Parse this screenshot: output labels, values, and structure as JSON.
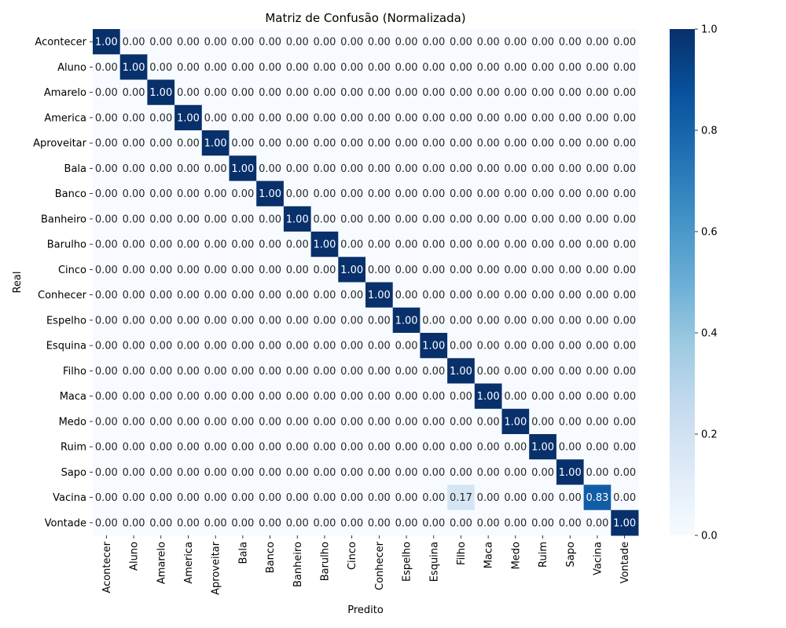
{
  "chart_data": {
    "type": "heatmap",
    "title": "Matriz de Confusão (Normalizada)",
    "xlabel": "Predito",
    "ylabel": "Real",
    "categories": [
      "Acontecer",
      "Aluno",
      "Amarelo",
      "America",
      "Aproveitar",
      "Bala",
      "Banco",
      "Banheiro",
      "Barulho",
      "Cinco",
      "Conhecer",
      "Espelho",
      "Esquina",
      "Filho",
      "Maca",
      "Medo",
      "Ruim",
      "Sapo",
      "Vacina",
      "Vontade"
    ],
    "values": [
      [
        1,
        0,
        0,
        0,
        0,
        0,
        0,
        0,
        0,
        0,
        0,
        0,
        0,
        0,
        0,
        0,
        0,
        0,
        0,
        0
      ],
      [
        0,
        1,
        0,
        0,
        0,
        0,
        0,
        0,
        0,
        0,
        0,
        0,
        0,
        0,
        0,
        0,
        0,
        0,
        0,
        0
      ],
      [
        0,
        0,
        1,
        0,
        0,
        0,
        0,
        0,
        0,
        0,
        0,
        0,
        0,
        0,
        0,
        0,
        0,
        0,
        0,
        0
      ],
      [
        0,
        0,
        0,
        1,
        0,
        0,
        0,
        0,
        0,
        0,
        0,
        0,
        0,
        0,
        0,
        0,
        0,
        0,
        0,
        0
      ],
      [
        0,
        0,
        0,
        0,
        1,
        0,
        0,
        0,
        0,
        0,
        0,
        0,
        0,
        0,
        0,
        0,
        0,
        0,
        0,
        0
      ],
      [
        0,
        0,
        0,
        0,
        0,
        1,
        0,
        0,
        0,
        0,
        0,
        0,
        0,
        0,
        0,
        0,
        0,
        0,
        0,
        0
      ],
      [
        0,
        0,
        0,
        0,
        0,
        0,
        1,
        0,
        0,
        0,
        0,
        0,
        0,
        0,
        0,
        0,
        0,
        0,
        0,
        0
      ],
      [
        0,
        0,
        0,
        0,
        0,
        0,
        0,
        1,
        0,
        0,
        0,
        0,
        0,
        0,
        0,
        0,
        0,
        0,
        0,
        0
      ],
      [
        0,
        0,
        0,
        0,
        0,
        0,
        0,
        0,
        1,
        0,
        0,
        0,
        0,
        0,
        0,
        0,
        0,
        0,
        0,
        0
      ],
      [
        0,
        0,
        0,
        0,
        0,
        0,
        0,
        0,
        0,
        1,
        0,
        0,
        0,
        0,
        0,
        0,
        0,
        0,
        0,
        0
      ],
      [
        0,
        0,
        0,
        0,
        0,
        0,
        0,
        0,
        0,
        0,
        1,
        0,
        0,
        0,
        0,
        0,
        0,
        0,
        0,
        0
      ],
      [
        0,
        0,
        0,
        0,
        0,
        0,
        0,
        0,
        0,
        0,
        0,
        1,
        0,
        0,
        0,
        0,
        0,
        0,
        0,
        0
      ],
      [
        0,
        0,
        0,
        0,
        0,
        0,
        0,
        0,
        0,
        0,
        0,
        0,
        1,
        0,
        0,
        0,
        0,
        0,
        0,
        0
      ],
      [
        0,
        0,
        0,
        0,
        0,
        0,
        0,
        0,
        0,
        0,
        0,
        0,
        0,
        1,
        0,
        0,
        0,
        0,
        0,
        0
      ],
      [
        0,
        0,
        0,
        0,
        0,
        0,
        0,
        0,
        0,
        0,
        0,
        0,
        0,
        0,
        1,
        0,
        0,
        0,
        0,
        0
      ],
      [
        0,
        0,
        0,
        0,
        0,
        0,
        0,
        0,
        0,
        0,
        0,
        0,
        0,
        0,
        0,
        1,
        0,
        0,
        0,
        0
      ],
      [
        0,
        0,
        0,
        0,
        0,
        0,
        0,
        0,
        0,
        0,
        0,
        0,
        0,
        0,
        0,
        0,
        1,
        0,
        0,
        0
      ],
      [
        0,
        0,
        0,
        0,
        0,
        0,
        0,
        0,
        0,
        0,
        0,
        0,
        0,
        0,
        0,
        0,
        0,
        1,
        0,
        0
      ],
      [
        0,
        0,
        0,
        0,
        0,
        0,
        0,
        0,
        0,
        0,
        0,
        0,
        0,
        0.17,
        0,
        0,
        0,
        0,
        0.83,
        0
      ],
      [
        0,
        0,
        0,
        0,
        0,
        0,
        0,
        0,
        0,
        0,
        0,
        0,
        0,
        0,
        0,
        0,
        0,
        0,
        0,
        1
      ]
    ],
    "value_format": "2 decimals",
    "colormap": "Blues",
    "vmin": 0,
    "vmax": 1,
    "colorbar_ticks": [
      "0.0",
      "0.2",
      "0.4",
      "0.6",
      "0.8",
      "1.0"
    ],
    "grid": false
  }
}
